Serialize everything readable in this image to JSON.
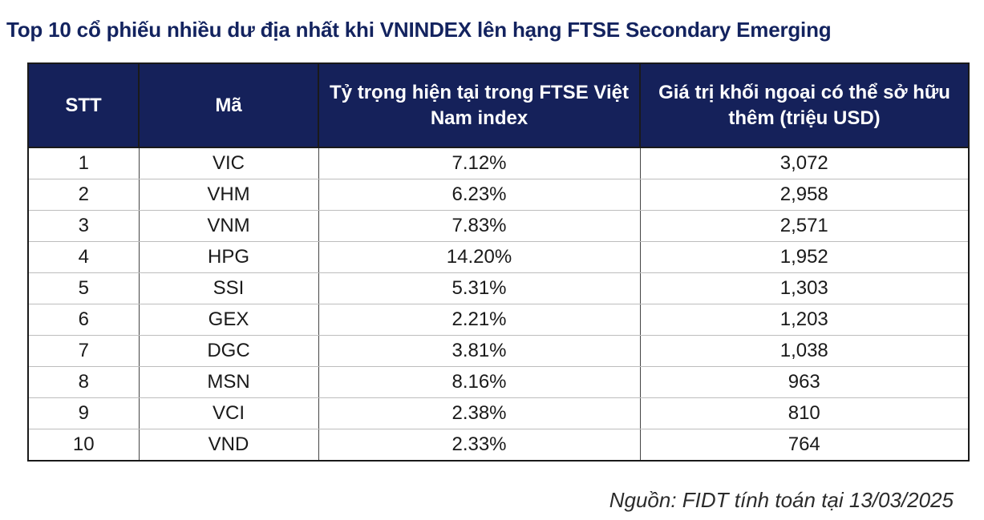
{
  "title": "Top 10 cổ phiếu nhiều dư địa nhất khi VNINDEX lên hạng FTSE Secondary Emerging",
  "table": {
    "headers": {
      "stt": "STT",
      "ticker": "Mã",
      "weight": "Tỷ trọng hiện tại trong FTSE Việt Nam index",
      "foreign_value": "Giá trị khối ngoại có thể sở hữu thêm (triệu USD)"
    },
    "rows": [
      {
        "stt": "1",
        "ticker": "VIC",
        "weight": "7.12%",
        "foreign_value": "3,072"
      },
      {
        "stt": "2",
        "ticker": "VHM",
        "weight": "6.23%",
        "foreign_value": "2,958"
      },
      {
        "stt": "3",
        "ticker": "VNM",
        "weight": "7.83%",
        "foreign_value": "2,571"
      },
      {
        "stt": "4",
        "ticker": "HPG",
        "weight": "14.20%",
        "foreign_value": "1,952"
      },
      {
        "stt": "5",
        "ticker": "SSI",
        "weight": "5.31%",
        "foreign_value": "1,303"
      },
      {
        "stt": "6",
        "ticker": "GEX",
        "weight": "2.21%",
        "foreign_value": "1,203"
      },
      {
        "stt": "7",
        "ticker": "DGC",
        "weight": "3.81%",
        "foreign_value": "1,038"
      },
      {
        "stt": "8",
        "ticker": "MSN",
        "weight": "8.16%",
        "foreign_value": "963"
      },
      {
        "stt": "9",
        "ticker": "VCI",
        "weight": "2.38%",
        "foreign_value": "810"
      },
      {
        "stt": "10",
        "ticker": "VND",
        "weight": "2.33%",
        "foreign_value": "764"
      }
    ]
  },
  "source": "Nguồn: FIDT tính toán tại 13/03/2025",
  "colors": {
    "title": "#13235f",
    "header_bg": "#15215a",
    "header_text": "#ffffff"
  }
}
